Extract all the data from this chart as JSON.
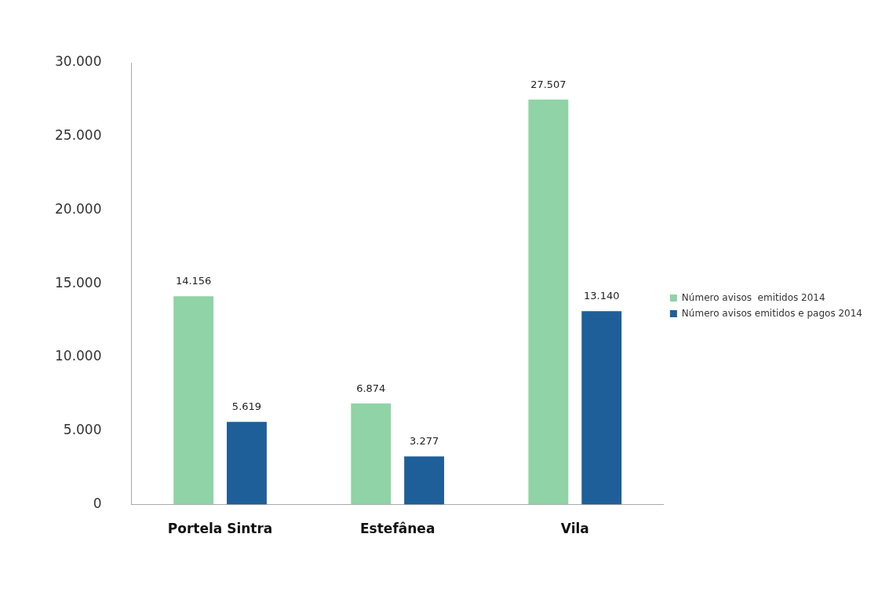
{
  "chart_data": {
    "type": "bar",
    "categories": [
      "Portela Sintra",
      "Estefânea",
      "Vila"
    ],
    "series": [
      {
        "name": "Número avisos  emitidos 2014",
        "color": "#8fd3a6",
        "values": [
          14156,
          6874,
          27507
        ],
        "value_labels": [
          "14.156",
          "6.874",
          "27.507"
        ]
      },
      {
        "name": "Número avisos emitidos e pagos 2014",
        "color": "#1f5f99",
        "values": [
          5619,
          3277,
          13140
        ],
        "value_labels": [
          "5.619",
          "3.277",
          "13.140"
        ]
      }
    ],
    "ylim": [
      0,
      30000
    ],
    "yticks": [
      {
        "value": 0,
        "label": "0"
      },
      {
        "value": 5000,
        "label": "5.000"
      },
      {
        "value": 10000,
        "label": "10.000"
      },
      {
        "value": 15000,
        "label": "15.000"
      },
      {
        "value": 20000,
        "label": "20.000"
      },
      {
        "value": 25000,
        "label": "25.000"
      },
      {
        "value": 30000,
        "label": "30.000"
      }
    ],
    "grid": false,
    "legend": "right"
  }
}
